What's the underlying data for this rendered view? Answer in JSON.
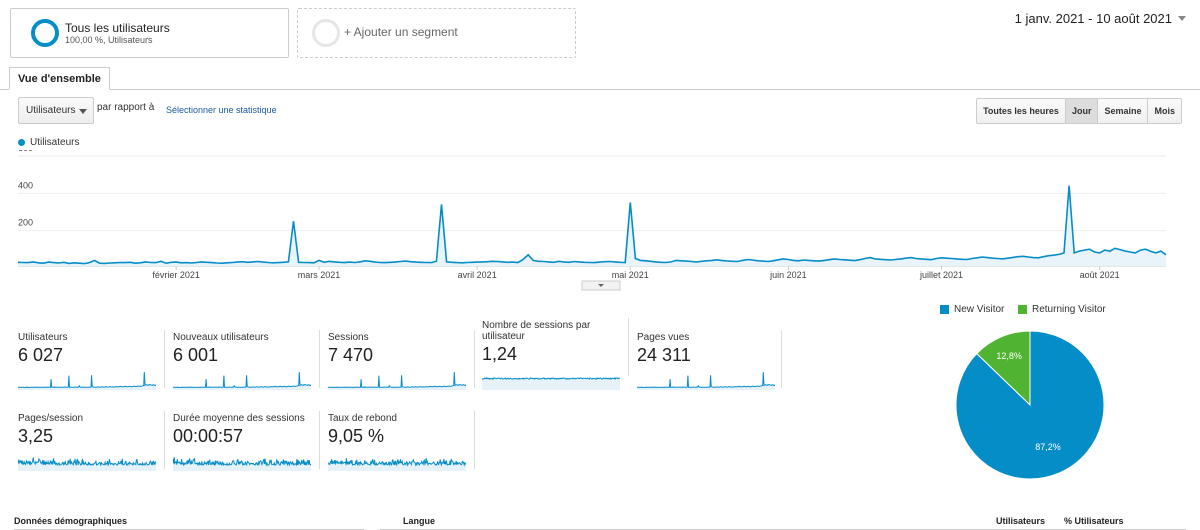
{
  "segments": {
    "active": {
      "title": "Tous les utilisateurs",
      "subtitle": "100,00 %, Utilisateurs"
    },
    "add_label": "+ Ajouter un segment"
  },
  "date_range": "1 janv. 2021 - 10 août 2021",
  "tabs": [
    {
      "label": "Vue d'ensemble",
      "active": true
    }
  ],
  "controls": {
    "metric_select": "Utilisateurs",
    "vs_label": "par rapport à",
    "select_stat_link": "Sélectionner une statistique",
    "granularity": [
      {
        "label": "Toutes les heures",
        "active": false
      },
      {
        "label": "Jour",
        "active": true
      },
      {
        "label": "Semaine",
        "active": false
      },
      {
        "label": "Mois",
        "active": false
      }
    ]
  },
  "colors": {
    "accent": "#058dc7",
    "returning": "#50b432",
    "link": "#1a5aa8"
  },
  "chart_data": [
    {
      "type": "line",
      "legend": [
        "Utilisateurs"
      ],
      "ylim": [
        0,
        600
      ],
      "yticks": [
        "600",
        "400",
        "200"
      ],
      "x_labels": [
        "février 2021",
        "mars 2021",
        "avril 2021",
        "mai 2021",
        "juin 2021",
        "juillet 2021",
        "août 2021"
      ],
      "x_label_days": [
        31,
        59,
        90,
        120,
        151,
        181,
        212
      ],
      "grid": true,
      "series": [
        {
          "name": "Utilisateurs",
          "color": "#058dc7",
          "values": [
            20,
            19,
            18,
            22,
            17,
            15,
            21,
            18,
            16,
            20,
            14,
            17,
            15,
            13,
            18,
            30,
            15,
            14,
            16,
            17,
            19,
            18,
            20,
            15,
            17,
            22,
            19,
            18,
            25,
            15,
            20,
            21,
            17,
            18,
            16,
            19,
            22,
            20,
            18,
            16,
            15,
            17,
            19,
            21,
            23,
            20,
            22,
            24,
            21,
            19,
            17,
            18,
            20,
            22,
            240,
            20,
            19,
            18,
            17,
            30,
            20,
            25,
            22,
            20,
            18,
            21,
            19,
            22,
            28,
            25,
            21,
            19,
            18,
            20,
            22,
            24,
            26,
            23,
            21,
            20,
            19,
            18,
            25,
            330,
            22,
            20,
            18,
            17,
            19,
            20,
            21,
            22,
            23,
            25,
            24,
            22,
            20,
            21,
            19,
            35,
            60,
            30,
            25,
            24,
            22,
            20,
            25,
            22,
            20,
            24,
            22,
            20,
            19,
            18,
            21,
            23,
            24,
            22,
            20,
            19,
            340,
            40,
            30,
            28,
            25,
            22,
            20,
            19,
            22,
            30,
            28,
            26,
            24,
            22,
            25,
            28,
            30,
            33,
            29,
            27,
            25,
            24,
            30,
            35,
            32,
            28,
            26,
            24,
            28,
            33,
            38,
            35,
            30,
            28,
            32,
            30,
            28,
            26,
            30,
            34,
            38,
            35,
            33,
            31,
            29,
            34,
            40,
            45,
            38,
            36,
            34,
            32,
            35,
            38,
            42,
            45,
            40,
            38,
            36,
            34,
            40,
            44,
            42,
            40,
            38,
            36,
            35,
            40,
            44,
            48,
            45,
            42,
            40,
            38,
            42,
            46,
            50,
            52,
            48,
            45,
            44,
            50,
            55,
            58,
            62,
            70,
            430,
            70,
            80,
            85,
            90,
            75,
            70,
            85,
            80,
            95,
            88,
            80,
            75,
            70,
            85,
            90,
            78,
            70,
            80,
            60
          ]
        }
      ]
    },
    {
      "type": "pie",
      "legend": [
        "New Visitor",
        "Returning Visitor"
      ],
      "slices": [
        {
          "name": "New Visitor",
          "value": 87.2,
          "label": "87,2%",
          "color": "#058dc7"
        },
        {
          "name": "Returning Visitor",
          "value": 12.8,
          "label": "12,8%",
          "color": "#50b432"
        }
      ]
    }
  ],
  "scorecards": [
    {
      "label": "Utilisateurs",
      "value": "6 027",
      "spark": "users"
    },
    {
      "label": "Nouveaux utilisateurs",
      "value": "6 001",
      "spark": "users"
    },
    {
      "label": "Sessions",
      "value": "7 470",
      "spark": "users"
    },
    {
      "label": "Nombre de sessions par utilisateur",
      "value": "1,24",
      "spark": "flat"
    },
    {
      "label": "Pages vues",
      "value": "24 311",
      "spark": "users"
    },
    {
      "label": "Pages/session",
      "value": "3,25",
      "spark": "noisy"
    },
    {
      "label": "Durée moyenne des sessions",
      "value": "00:00:57",
      "spark": "noisy"
    },
    {
      "label": "Taux de rebond",
      "value": "9,05 %",
      "spark": "noisy"
    }
  ],
  "bottom": {
    "demographics": "Données démographiques",
    "language": "Langue",
    "col_users": "Utilisateurs",
    "col_pct_users": "% Utilisateurs"
  }
}
